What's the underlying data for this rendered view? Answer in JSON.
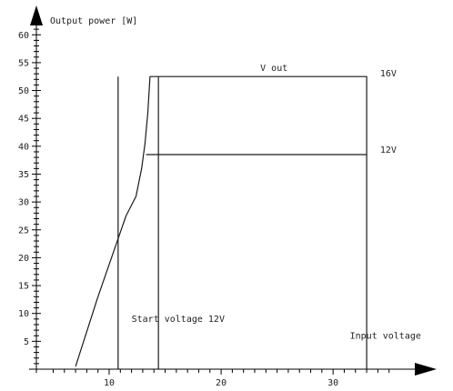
{
  "chart_data": {
    "type": "line",
    "title": "",
    "ylabel": "Output power [W]",
    "xlabel": "Input voltage",
    "xlim": [
      3.5,
      36
    ],
    "ylim": [
      0,
      62
    ],
    "x_ticks": [
      10,
      20,
      30
    ],
    "y_ticks": [
      5,
      10,
      15,
      20,
      25,
      30,
      35,
      40,
      45,
      50,
      55,
      60
    ],
    "grid": false,
    "series": [
      {
        "values": [
          [
            7.0,
            0.5
          ],
          [
            9.0,
            13.0
          ],
          [
            11.5,
            27.5
          ],
          [
            12.4,
            31.0
          ],
          [
            12.9,
            36.0
          ],
          [
            13.2,
            40.5
          ],
          [
            13.45,
            46.0
          ],
          [
            13.65,
            52.5
          ],
          [
            33.0,
            52.5
          ],
          [
            33.0,
            0
          ]
        ]
      },
      {
        "values": [
          [
            13.3,
            38.5
          ],
          [
            33.0,
            38.5
          ]
        ]
      }
    ],
    "vlines": [
      {
        "x": 10.8,
        "y_top": 52.5
      },
      {
        "x": 14.4,
        "y_top": 52.5
      }
    ],
    "annotations": {
      "vout": {
        "text": "V out",
        "x": 23.5,
        "y": 53.5
      },
      "v16": {
        "text": "16V",
        "x": 34.2,
        "y": 52.5
      },
      "v12": {
        "text": "12V",
        "x": 34.2,
        "y": 38.8
      },
      "start": {
        "text": "Start voltage 12V",
        "x": 12.0,
        "y": 8.5
      },
      "input": {
        "text": "Input voltage",
        "x": 31.5,
        "y": 5.5
      }
    },
    "colors": {
      "line": "#1a1a1a",
      "axis": "#000000",
      "text": "#222222"
    }
  }
}
